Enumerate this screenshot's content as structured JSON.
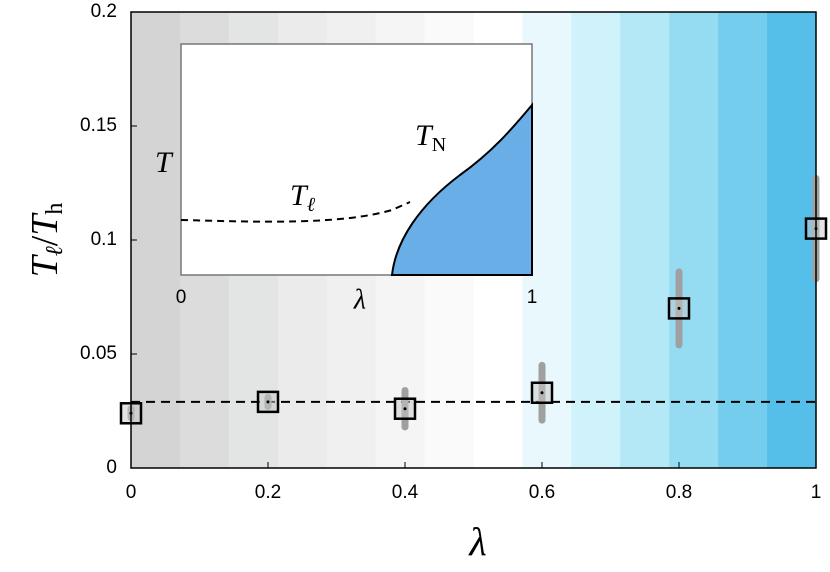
{
  "chart_data": {
    "type": "errorscatter",
    "x": [
      0,
      0.2,
      0.4,
      0.6,
      0.8,
      1
    ],
    "values": [
      0.024,
      0.029,
      0.026,
      0.033,
      0.07,
      0.105
    ],
    "errors": [
      0.002,
      0.002,
      0.008,
      0.012,
      0.016,
      0.022
    ],
    "color": "#000000",
    "error_color": "#a0a0a0",
    "reference_line": 0.029,
    "xlim": [
      0,
      1
    ],
    "xticks": [
      0,
      0.2,
      0.4,
      0.6,
      0.8,
      1
    ],
    "ylim": [
      0,
      0.2
    ],
    "yticks": [
      0,
      0.05,
      0.1,
      0.15,
      0.2
    ],
    "xlabel": "λ",
    "ylabel": [
      "T",
      "ℓ",
      "/",
      "T",
      "h"
    ],
    "background_stripes": [
      "#d4d4d4",
      "#dcdcdc",
      "#e3e5e5",
      "#ebebeb",
      "#f0f0f0",
      "#f5f5f5",
      "#fafafa",
      "#ffffff",
      "#e8f8fc",
      "#d0f2fa",
      "#b4e8f7",
      "#95dcf3",
      "#75cdee",
      "#55bfe9"
    ],
    "inset": {
      "ylabel": "T",
      "xlabel": "λ",
      "xtick_labels": [
        "0",
        "1"
      ],
      "lower_curve_label": [
        "T",
        "ℓ"
      ],
      "upper_curve_label": [
        "T",
        "N"
      ],
      "region_color": "#6aaee8"
    }
  }
}
